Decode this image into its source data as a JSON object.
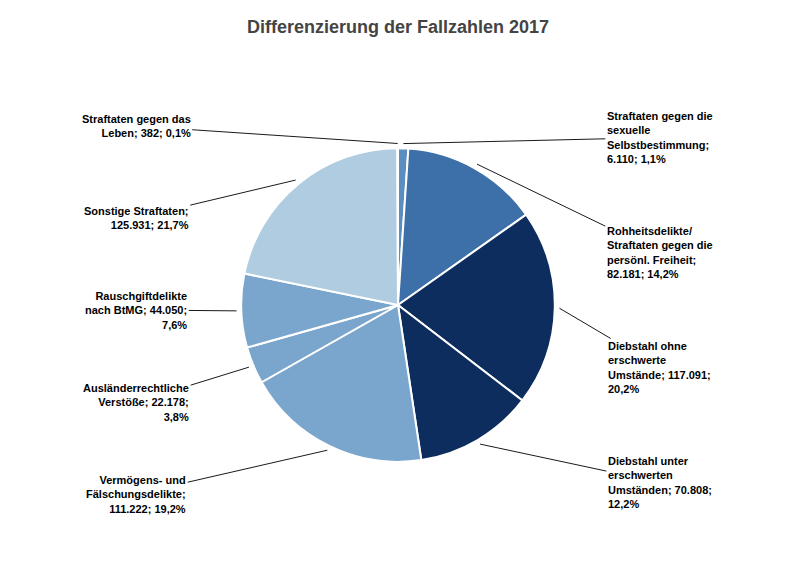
{
  "chart_data": {
    "type": "pie",
    "title": "Differenzierung der Fallzahlen 2017",
    "values": [
      6110,
      82181,
      117091,
      70808,
      111222,
      22178,
      44050,
      125931,
      382
    ],
    "value_labels": [
      "Straftaten gegen die\nsexuelle\nSelbstbestimmung;\n6.110; 1,1%",
      "Rohheitsdelikte/\nStraftaten gegen die\npersönl. Freiheit;\n82.181; 14,2%",
      "Diebstahl ohne\nerschwerte\nUmstände; 117.091;\n20,2%",
      "Diebstahl unter\nerschwerten\nUmständen; 70.808;\n12,2%",
      "Vermögens- und\nFälschungsdelikte;\n111.222; 19,2%",
      "Ausländerrechtliche\nVerstöße; 22.178;\n3,8%",
      "Rauschgiftdelikte\nnach BtMG; 44.050;\n7,6%",
      "Sonstige Straftaten;\n125.931; 21,7%",
      "Straftaten gegen das\nLeben; 382; 0,1%"
    ],
    "colors": [
      "#5b8dc0",
      "#3d6fa8",
      "#0d2d5e",
      "#0d2d5e",
      "#7aa5cc",
      "#7aa5cc",
      "#7aa5cc",
      "#b0cce0",
      "#c5d8e8"
    ],
    "data_labels": true
  }
}
